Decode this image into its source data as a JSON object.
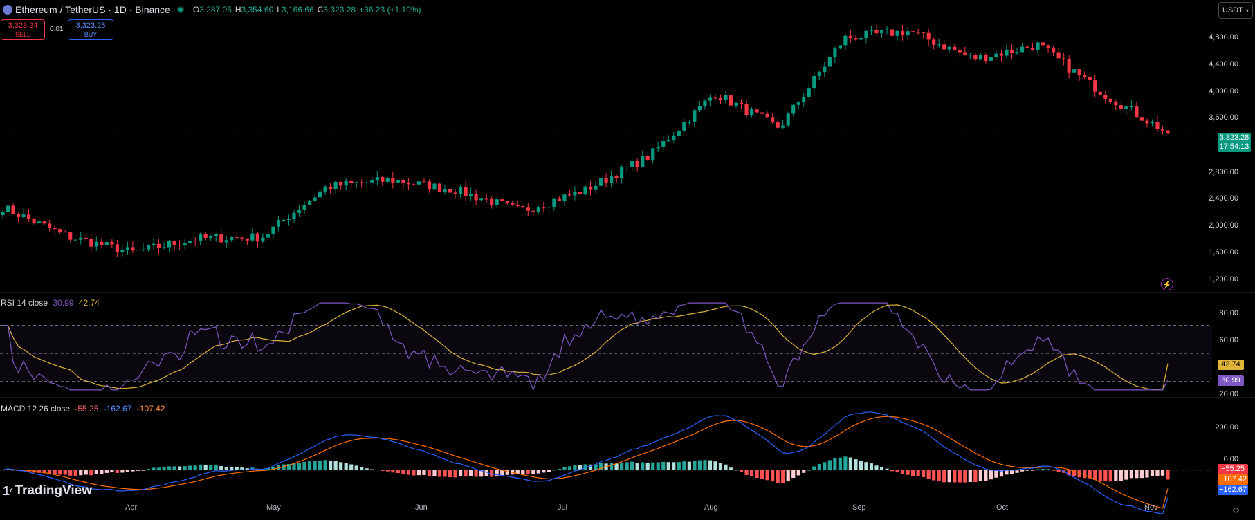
{
  "header": {
    "symbol": "Ethereum / TetherUS · 1D · Binance",
    "open_label": "O",
    "open": "3,287.05",
    "high_label": "H",
    "high": "3,354.60",
    "low_label": "L",
    "low": "3,166.66",
    "close_label": "C",
    "close": "3,323.28",
    "change": "+36.23 (+1.10%)",
    "currency_button": "USDT"
  },
  "trade": {
    "sell_price": "3,323.24",
    "sell_label": "SELL",
    "spread": "0.01",
    "buy_price": "3,323.25",
    "buy_label": "BUY"
  },
  "price_tag": {
    "price": "3,323.28",
    "countdown": "17:54:13"
  },
  "rsi": {
    "label": "RSI 14 close",
    "value": "30.99",
    "ma_value": "42.74"
  },
  "macd": {
    "label": "MACD 12 26 close",
    "hist": "-55.25",
    "macd": "-162.67",
    "signal": "-107.42",
    "tag_hist": "−55.25",
    "tag_signal": "−107.42",
    "tag_macd": "−162.67"
  },
  "logo": "TradingView",
  "colors": {
    "up": "#089981",
    "down": "#f23645",
    "rsi_line": "#7e57c2",
    "rsi_ma": "#e0b53a",
    "macd_line": "#2962ff",
    "signal_line": "#ff6d00"
  },
  "chart_data": [
    {
      "type": "candlestick",
      "title": "Ethereum / TetherUS · 1D · Binance",
      "x_ticks": [
        "Apr",
        "May",
        "Jun",
        "Jul",
        "Aug",
        "Sep",
        "Oct",
        "Nov"
      ],
      "y_ticks": [
        "1,200.00",
        "1,600.00",
        "2,000.00",
        "2,400.00",
        "2,800.00",
        "3,600.00",
        "4,000.00",
        "4,400.00",
        "4,800.00"
      ],
      "ylim": [
        1050,
        5050
      ],
      "last_price": 3323.28,
      "key_closes": [
        {
          "date": "Mar",
          "close": 2250
        },
        {
          "date": "Mar end",
          "close": 1830
        },
        {
          "date": "Apr mid",
          "close": 1600
        },
        {
          "date": "Apr end",
          "close": 1800
        },
        {
          "date": "May 1",
          "close": 1820
        },
        {
          "date": "May 5",
          "close": 2550
        },
        {
          "date": "May end",
          "close": 2650
        },
        {
          "date": "Jun mid",
          "close": 2500
        },
        {
          "date": "Jun end",
          "close": 2200
        },
        {
          "date": "Jul mid",
          "close": 2500
        },
        {
          "date": "Jul end",
          "close": 3000
        },
        {
          "date": "Aug 5",
          "close": 3900
        },
        {
          "date": "Aug end",
          "close": 3400
        },
        {
          "date": "Sep mid",
          "close": 4700
        },
        {
          "date": "Sep end",
          "close": 4800
        },
        {
          "date": "Oct mid",
          "close": 4400
        },
        {
          "date": "Oct end",
          "close": 4600
        },
        {
          "date": "Nov 1",
          "close": 3900
        },
        {
          "date": "Nov 5",
          "close": 3323.28
        }
      ]
    },
    {
      "type": "line",
      "title": "RSI 14 close",
      "y_ticks": [
        "20.00",
        "60.00",
        "80.00"
      ],
      "ylim": [
        20,
        90
      ],
      "bands": [
        30,
        50,
        70
      ],
      "series": [
        {
          "name": "RSI",
          "last": 30.99
        },
        {
          "name": "MA",
          "last": 42.74
        }
      ]
    },
    {
      "type": "bar",
      "title": "MACD 12 26 close",
      "y_ticks": [
        "0.00",
        "200.00"
      ],
      "ylim": [
        -250,
        380
      ],
      "series": [
        {
          "name": "Histogram",
          "last": -55.25
        },
        {
          "name": "MACD",
          "last": -162.67
        },
        {
          "name": "Signal",
          "last": -107.42
        }
      ]
    }
  ]
}
